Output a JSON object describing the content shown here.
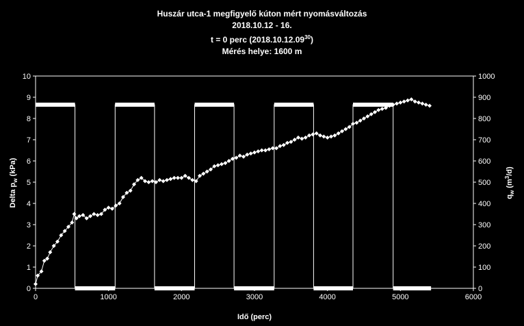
{
  "chart_data": {
    "type": "line",
    "title_lines": [
      "Huszár utca-1 megfigyelő kúton mért nyomásváltozás",
      "2018.10.12 - 16."
    ],
    "subtitle": {
      "prefix": "t = 0 perc (2018.10.12.09",
      "superscript": "30",
      "suffix": ")"
    },
    "location_line": "Mérés helye: 1600 m",
    "xlabel": "Idő (perc)",
    "ylabel_left": {
      "text": "Delta p",
      "sub": "w",
      "suffix": " (kPa)"
    },
    "ylabel_right": {
      "text": "q",
      "sub": "w",
      "suffix_pre": " (m",
      "sup": "3",
      "suffix_post": "/d)"
    },
    "xlim": [
      0,
      6000
    ],
    "ylim_left": [
      0,
      10
    ],
    "ylim_right": [
      0,
      1000
    ],
    "x_ticks": [
      "0",
      "1000",
      "2000",
      "3000",
      "4000",
      "5000",
      "6000"
    ],
    "y_left_ticks": [
      "0",
      "1",
      "2",
      "3",
      "4",
      "5",
      "6",
      "7",
      "8",
      "9",
      "10"
    ],
    "y_right_ticks": [
      "0",
      "100",
      "200",
      "300",
      "400",
      "500",
      "600",
      "700",
      "800",
      "900",
      "1000"
    ],
    "grid": false,
    "colors": {
      "background": "#000000",
      "foreground": "#ffffff"
    },
    "series": [
      {
        "axis": "left",
        "marker": "diamond",
        "x": [
          0,
          30,
          80,
          120,
          160,
          200,
          250,
          300,
          350,
          400,
          450,
          500,
          530,
          560,
          600,
          650,
          700,
          750,
          800,
          850,
          900,
          950,
          1000,
          1050,
          1100,
          1150,
          1200,
          1250,
          1300,
          1350,
          1400,
          1450,
          1500,
          1550,
          1600,
          1650,
          1700,
          1750,
          1800,
          1850,
          1900,
          1950,
          2000,
          2050,
          2100,
          2150,
          2200,
          2250,
          2300,
          2350,
          2400,
          2450,
          2500,
          2550,
          2600,
          2650,
          2700,
          2750,
          2800,
          2850,
          2900,
          2950,
          3000,
          3050,
          3100,
          3150,
          3200,
          3250,
          3300,
          3350,
          3400,
          3450,
          3500,
          3550,
          3600,
          3650,
          3700,
          3750,
          3800,
          3850,
          3900,
          3950,
          4000,
          4050,
          4100,
          4150,
          4200,
          4250,
          4300,
          4350,
          4400,
          4450,
          4500,
          4550,
          4600,
          4650,
          4700,
          4750,
          4800,
          4850,
          4900,
          4950,
          5000,
          5050,
          5100,
          5150,
          5200,
          5250,
          5300,
          5350,
          5400
        ],
        "y": [
          0.2,
          0.6,
          0.8,
          1.3,
          1.4,
          1.7,
          2.0,
          2.2,
          2.5,
          2.7,
          2.9,
          3.1,
          3.5,
          3.3,
          3.4,
          3.45,
          3.3,
          3.4,
          3.5,
          3.45,
          3.5,
          3.7,
          3.8,
          3.75,
          3.9,
          4.0,
          4.3,
          4.5,
          4.6,
          4.9,
          5.1,
          5.2,
          5.05,
          5.0,
          5.05,
          5.0,
          5.1,
          5.05,
          5.1,
          5.15,
          5.2,
          5.2,
          5.2,
          5.3,
          5.2,
          5.1,
          5.05,
          5.3,
          5.4,
          5.5,
          5.6,
          5.75,
          5.8,
          5.85,
          5.9,
          6.0,
          6.1,
          6.15,
          6.25,
          6.2,
          6.3,
          6.35,
          6.4,
          6.45,
          6.5,
          6.5,
          6.55,
          6.6,
          6.6,
          6.7,
          6.75,
          6.85,
          6.9,
          7.0,
          7.1,
          7.05,
          7.1,
          7.2,
          7.25,
          7.3,
          7.2,
          7.15,
          7.1,
          7.15,
          7.2,
          7.3,
          7.4,
          7.5,
          7.6,
          7.75,
          7.8,
          7.9,
          8.0,
          8.1,
          8.2,
          8.3,
          8.4,
          8.45,
          8.5,
          8.6,
          8.65,
          8.7,
          8.75,
          8.8,
          8.85,
          8.9,
          8.8,
          8.75,
          8.7,
          8.65,
          8.6
        ]
      },
      {
        "axis": "right",
        "marker": "step",
        "x": [
          0,
          540,
          540,
          1090,
          1090,
          1630,
          1630,
          2180,
          2180,
          2720,
          2720,
          3270,
          3270,
          3810,
          3810,
          4350,
          4350,
          4900,
          4900,
          5420
        ],
        "y": [
          865,
          865,
          0,
          0,
          865,
          865,
          0,
          0,
          865,
          865,
          0,
          0,
          865,
          865,
          0,
          0,
          865,
          865,
          0,
          0
        ]
      }
    ]
  }
}
